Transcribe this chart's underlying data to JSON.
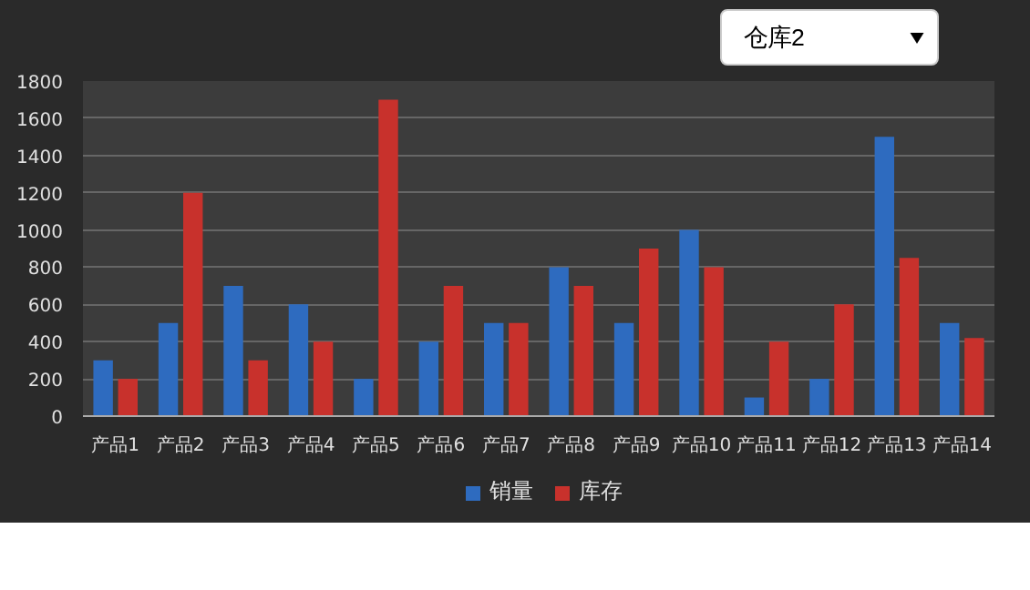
{
  "chart_data": {
    "type": "bar",
    "categories": [
      "产品1",
      "产品2",
      "产品3",
      "产品4",
      "产品5",
      "产品6",
      "产品7",
      "产品8",
      "产品9",
      "产品10",
      "产品11",
      "产品12",
      "产品13",
      "产品14"
    ],
    "series": [
      {
        "name": "销量",
        "color": "#2e6bbf",
        "values": [
          300,
          500,
          700,
          600,
          200,
          400,
          500,
          800,
          500,
          1000,
          100,
          200,
          1500,
          500
        ]
      },
      {
        "name": "库存",
        "color": "#c8312c",
        "values": [
          200,
          1200,
          300,
          400,
          1700,
          700,
          500,
          700,
          900,
          800,
          400,
          600,
          850,
          420
        ]
      }
    ],
    "ylim": [
      0,
      1800
    ],
    "yticks": [
      0,
      200,
      400,
      600,
      800,
      1000,
      1200,
      1400,
      1600,
      1800
    ],
    "grid": "y",
    "legend": "bottom",
    "annotations": [
      "仓库2"
    ]
  }
}
